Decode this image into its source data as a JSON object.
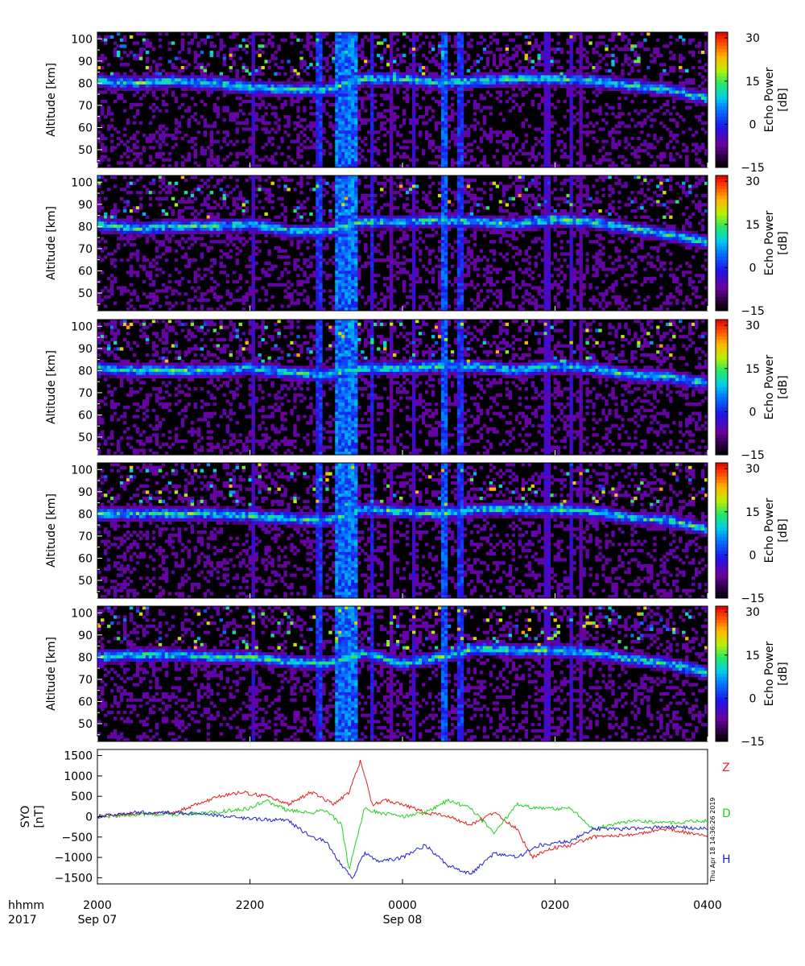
{
  "stamp": "Thu Apr 18 14:36:26 2019",
  "time_axis": {
    "row1_label": "hhmm",
    "row2_label": "2017",
    "ticks": [
      {
        "hour": 20,
        "label": "2000",
        "date": "Sep 07"
      },
      {
        "hour": 22,
        "label": "2200",
        "date": ""
      },
      {
        "hour": 24,
        "label": "0000",
        "date": "Sep 08"
      },
      {
        "hour": 26,
        "label": "0200",
        "date": ""
      },
      {
        "hour": 28,
        "label": "0400",
        "date": ""
      }
    ]
  },
  "colors": {
    "Z": "#e02020",
    "D": "#20d020",
    "H": "#2020d0",
    "background": "#000000"
  },
  "chart_data": [
    {
      "type": "heatmap",
      "panel": 1,
      "ylabel": "Altitude [km]",
      "yticks": [
        50,
        60,
        70,
        80,
        90,
        100
      ],
      "ylim": [
        42,
        103
      ],
      "xlim_hours": [
        20,
        28
      ],
      "colorbar": {
        "label": "Echo Power [dB]",
        "ticks": [
          -15,
          0,
          15,
          30
        ],
        "range": [
          -15,
          32
        ]
      },
      "layer_altitude_km": [
        {
          "t": 20.0,
          "alt": 81
        },
        {
          "t": 20.5,
          "alt": 80
        },
        {
          "t": 21.0,
          "alt": 81
        },
        {
          "t": 21.5,
          "alt": 80
        },
        {
          "t": 22.0,
          "alt": 78
        },
        {
          "t": 22.5,
          "alt": 77
        },
        {
          "t": 23.0,
          "alt": 77
        },
        {
          "t": 23.5,
          "alt": 82
        },
        {
          "t": 24.0,
          "alt": 82
        },
        {
          "t": 24.5,
          "alt": 80
        },
        {
          "t": 25.0,
          "alt": 81
        },
        {
          "t": 25.5,
          "alt": 82
        },
        {
          "t": 26.0,
          "alt": 82
        },
        {
          "t": 26.5,
          "alt": 81
        },
        {
          "t": 27.0,
          "alt": 79
        },
        {
          "t": 27.5,
          "alt": 77
        },
        {
          "t": 28.0,
          "alt": 73
        }
      ]
    },
    {
      "type": "heatmap",
      "panel": 2,
      "ylabel": "Altitude [km]",
      "yticks": [
        50,
        60,
        70,
        80,
        90,
        100
      ],
      "ylim": [
        42,
        103
      ],
      "xlim_hours": [
        20,
        28
      ],
      "colorbar": {
        "label": "Echo Power [dB]",
        "ticks": [
          -15,
          0,
          15,
          30
        ],
        "range": [
          -15,
          32
        ]
      },
      "layer_altitude_km": [
        {
          "t": 20.0,
          "alt": 81
        },
        {
          "t": 20.5,
          "alt": 79
        },
        {
          "t": 21.0,
          "alt": 80
        },
        {
          "t": 21.5,
          "alt": 80
        },
        {
          "t": 22.0,
          "alt": 81
        },
        {
          "t": 22.5,
          "alt": 78
        },
        {
          "t": 23.0,
          "alt": 78
        },
        {
          "t": 23.5,
          "alt": 82
        },
        {
          "t": 24.0,
          "alt": 82
        },
        {
          "t": 24.5,
          "alt": 83
        },
        {
          "t": 25.0,
          "alt": 82
        },
        {
          "t": 25.5,
          "alt": 81
        },
        {
          "t": 26.0,
          "alt": 83
        },
        {
          "t": 26.5,
          "alt": 82
        },
        {
          "t": 27.0,
          "alt": 79
        },
        {
          "t": 27.5,
          "alt": 76
        },
        {
          "t": 28.0,
          "alt": 73
        }
      ]
    },
    {
      "type": "heatmap",
      "panel": 3,
      "ylabel": "Altitude [km]",
      "yticks": [
        50,
        60,
        70,
        80,
        90,
        100
      ],
      "ylim": [
        42,
        103
      ],
      "xlim_hours": [
        20,
        28
      ],
      "colorbar": {
        "label": "Echo Power [dB]",
        "ticks": [
          -15,
          0,
          15,
          30
        ],
        "range": [
          -15,
          32
        ]
      },
      "layer_altitude_km": [
        {
          "t": 20.0,
          "alt": 81
        },
        {
          "t": 20.5,
          "alt": 80
        },
        {
          "t": 21.0,
          "alt": 80
        },
        {
          "t": 21.5,
          "alt": 80
        },
        {
          "t": 22.0,
          "alt": 81
        },
        {
          "t": 22.5,
          "alt": 79
        },
        {
          "t": 23.0,
          "alt": 78
        },
        {
          "t": 23.5,
          "alt": 81
        },
        {
          "t": 24.0,
          "alt": 81
        },
        {
          "t": 24.5,
          "alt": 82
        },
        {
          "t": 25.0,
          "alt": 82
        },
        {
          "t": 25.5,
          "alt": 80
        },
        {
          "t": 26.0,
          "alt": 82
        },
        {
          "t": 26.5,
          "alt": 81
        },
        {
          "t": 27.0,
          "alt": 78
        },
        {
          "t": 27.5,
          "alt": 77
        },
        {
          "t": 28.0,
          "alt": 74
        }
      ]
    },
    {
      "type": "heatmap",
      "panel": 4,
      "ylabel": "Altitude [km]",
      "yticks": [
        50,
        60,
        70,
        80,
        90,
        100
      ],
      "ylim": [
        42,
        103
      ],
      "xlim_hours": [
        20,
        28
      ],
      "colorbar": {
        "label": "Echo Power [dB]",
        "ticks": [
          -15,
          0,
          15,
          30
        ],
        "range": [
          -15,
          32
        ]
      },
      "layer_altitude_km": [
        {
          "t": 20.0,
          "alt": 80
        },
        {
          "t": 20.5,
          "alt": 80
        },
        {
          "t": 21.0,
          "alt": 80
        },
        {
          "t": 21.5,
          "alt": 80
        },
        {
          "t": 22.0,
          "alt": 79
        },
        {
          "t": 22.5,
          "alt": 78
        },
        {
          "t": 23.0,
          "alt": 77
        },
        {
          "t": 23.5,
          "alt": 82
        },
        {
          "t": 24.0,
          "alt": 81
        },
        {
          "t": 24.5,
          "alt": 80
        },
        {
          "t": 25.0,
          "alt": 82
        },
        {
          "t": 25.5,
          "alt": 82
        },
        {
          "t": 26.0,
          "alt": 82
        },
        {
          "t": 26.5,
          "alt": 81
        },
        {
          "t": 27.0,
          "alt": 78
        },
        {
          "t": 27.5,
          "alt": 77
        },
        {
          "t": 28.0,
          "alt": 73
        }
      ]
    },
    {
      "type": "heatmap",
      "panel": 5,
      "ylabel": "Altitude [km]",
      "yticks": [
        50,
        60,
        70,
        80,
        90,
        100
      ],
      "ylim": [
        42,
        103
      ],
      "xlim_hours": [
        20,
        28
      ],
      "colorbar": {
        "label": "Echo Power [dB]",
        "ticks": [
          -15,
          0,
          15,
          30
        ],
        "range": [
          -15,
          32
        ]
      },
      "layer_altitude_km": [
        {
          "t": 20.0,
          "alt": 80
        },
        {
          "t": 20.5,
          "alt": 81
        },
        {
          "t": 21.0,
          "alt": 81
        },
        {
          "t": 21.5,
          "alt": 80
        },
        {
          "t": 22.0,
          "alt": 80
        },
        {
          "t": 22.5,
          "alt": 78
        },
        {
          "t": 23.0,
          "alt": 77
        },
        {
          "t": 23.5,
          "alt": 82
        },
        {
          "t": 24.0,
          "alt": 77
        },
        {
          "t": 24.5,
          "alt": 80
        },
        {
          "t": 25.0,
          "alt": 84
        },
        {
          "t": 25.5,
          "alt": 83
        },
        {
          "t": 26.0,
          "alt": 83
        },
        {
          "t": 26.5,
          "alt": 82
        },
        {
          "t": 27.0,
          "alt": 79
        },
        {
          "t": 27.5,
          "alt": 77
        },
        {
          "t": 28.0,
          "alt": 73
        }
      ]
    },
    {
      "type": "line",
      "panel": 6,
      "ylabel": "SYO [nT]",
      "yticks": [
        -1500,
        -1000,
        -500,
        0,
        500,
        1000,
        1500
      ],
      "ylim": [
        -1650,
        1650
      ],
      "xlim_hours": [
        20,
        28
      ],
      "series": [
        {
          "name": "Z",
          "color": "#e02020",
          "points": [
            {
              "t": 20.0,
              "v": 0
            },
            {
              "t": 20.5,
              "v": 80
            },
            {
              "t": 21.0,
              "v": 100
            },
            {
              "t": 21.3,
              "v": 300
            },
            {
              "t": 21.6,
              "v": 500
            },
            {
              "t": 21.9,
              "v": 600
            },
            {
              "t": 22.2,
              "v": 500
            },
            {
              "t": 22.5,
              "v": 300
            },
            {
              "t": 22.8,
              "v": 600
            },
            {
              "t": 23.1,
              "v": 300
            },
            {
              "t": 23.3,
              "v": 600
            },
            {
              "t": 23.45,
              "v": 1400
            },
            {
              "t": 23.6,
              "v": 300
            },
            {
              "t": 23.8,
              "v": 400
            },
            {
              "t": 24.0,
              "v": 300
            },
            {
              "t": 24.3,
              "v": 100
            },
            {
              "t": 24.6,
              "v": 0
            },
            {
              "t": 24.9,
              "v": -200
            },
            {
              "t": 25.2,
              "v": 100
            },
            {
              "t": 25.5,
              "v": -300
            },
            {
              "t": 25.7,
              "v": -1000
            },
            {
              "t": 25.9,
              "v": -800
            },
            {
              "t": 26.2,
              "v": -700
            },
            {
              "t": 26.5,
              "v": -500
            },
            {
              "t": 27.0,
              "v": -450
            },
            {
              "t": 27.5,
              "v": -300
            },
            {
              "t": 28.0,
              "v": -500
            }
          ]
        },
        {
          "name": "D",
          "color": "#20d020",
          "points": [
            {
              "t": 20.0,
              "v": 0
            },
            {
              "t": 20.5,
              "v": 50
            },
            {
              "t": 21.0,
              "v": 50
            },
            {
              "t": 21.5,
              "v": 100
            },
            {
              "t": 22.0,
              "v": 200
            },
            {
              "t": 22.2,
              "v": 400
            },
            {
              "t": 22.5,
              "v": 150
            },
            {
              "t": 22.8,
              "v": 100
            },
            {
              "t": 23.0,
              "v": 150
            },
            {
              "t": 23.2,
              "v": -200
            },
            {
              "t": 23.3,
              "v": -1300
            },
            {
              "t": 23.5,
              "v": 200
            },
            {
              "t": 23.7,
              "v": 100
            },
            {
              "t": 24.0,
              "v": 0
            },
            {
              "t": 24.3,
              "v": 100
            },
            {
              "t": 24.6,
              "v": 400
            },
            {
              "t": 24.9,
              "v": 200
            },
            {
              "t": 25.2,
              "v": -400
            },
            {
              "t": 25.5,
              "v": 300
            },
            {
              "t": 25.8,
              "v": 200
            },
            {
              "t": 26.2,
              "v": 200
            },
            {
              "t": 26.5,
              "v": -300
            },
            {
              "t": 27.0,
              "v": -100
            },
            {
              "t": 27.5,
              "v": -150
            },
            {
              "t": 28.0,
              "v": -100
            }
          ]
        },
        {
          "name": "H",
          "color": "#2020d0",
          "points": [
            {
              "t": 20.0,
              "v": 0
            },
            {
              "t": 20.5,
              "v": 100
            },
            {
              "t": 21.0,
              "v": 100
            },
            {
              "t": 21.5,
              "v": 50
            },
            {
              "t": 22.0,
              "v": -50
            },
            {
              "t": 22.5,
              "v": -100
            },
            {
              "t": 22.8,
              "v": -500
            },
            {
              "t": 23.0,
              "v": -600
            },
            {
              "t": 23.2,
              "v": -1200
            },
            {
              "t": 23.35,
              "v": -1500
            },
            {
              "t": 23.5,
              "v": -900
            },
            {
              "t": 23.7,
              "v": -1100
            },
            {
              "t": 24.0,
              "v": -1000
            },
            {
              "t": 24.3,
              "v": -700
            },
            {
              "t": 24.6,
              "v": -1200
            },
            {
              "t": 24.9,
              "v": -1400
            },
            {
              "t": 25.2,
              "v": -900
            },
            {
              "t": 25.5,
              "v": -1000
            },
            {
              "t": 25.8,
              "v": -700
            },
            {
              "t": 26.2,
              "v": -600
            },
            {
              "t": 26.5,
              "v": -300
            },
            {
              "t": 27.0,
              "v": -300
            },
            {
              "t": 27.5,
              "v": -250
            },
            {
              "t": 28.0,
              "v": -300
            }
          ]
        }
      ]
    }
  ]
}
